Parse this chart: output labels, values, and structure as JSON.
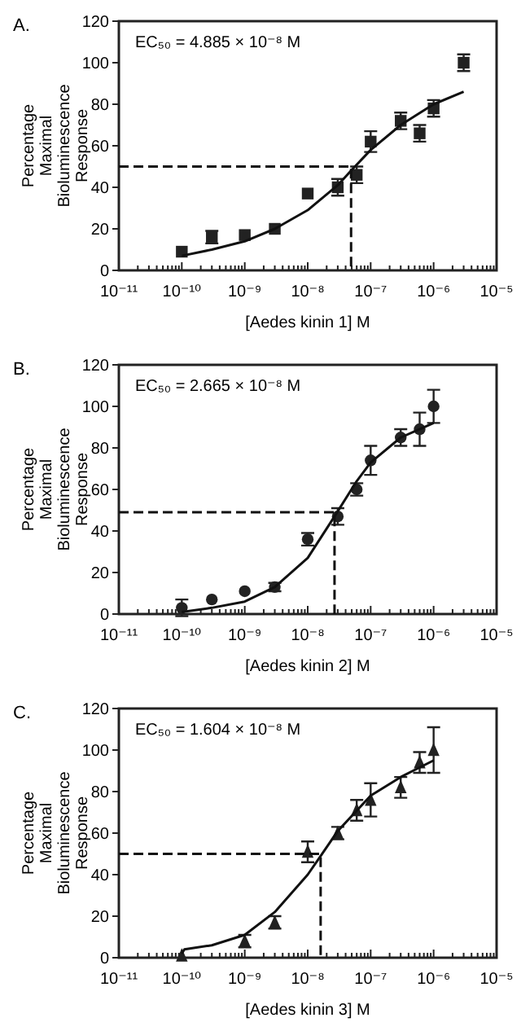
{
  "chart_data": [
    {
      "type": "scatter",
      "title": "A.",
      "xlabel": "[Aedes kinin 1] M",
      "ylabel": "Percentage Maximal Bioluminescence Response",
      "annotations": [
        "EC₅₀ = 4.885 × 10⁻⁸ M"
      ],
      "log": "x",
      "xlim": [
        1e-11,
        1e-05
      ],
      "ylim": [
        0,
        120
      ],
      "yticks": [
        0,
        20,
        40,
        60,
        80,
        100,
        120
      ],
      "xticks": [
        {
          "value": 1e-11,
          "label": "10⁻¹¹"
        },
        {
          "value": 1e-10,
          "label": "10⁻¹⁰"
        },
        {
          "value": 1e-09,
          "label": "10⁻⁹"
        },
        {
          "value": 1e-08,
          "label": "10⁻⁸"
        },
        {
          "value": 1e-07,
          "label": "10⁻⁷"
        },
        {
          "value": 1e-06,
          "label": "10⁻⁶"
        },
        {
          "value": 1e-05,
          "label": "10⁻⁵"
        }
      ],
      "series": [
        {
          "marker": "square",
          "color": "#222222",
          "x": [
            1e-10,
            3e-10,
            1e-09,
            3e-09,
            1e-08,
            3e-08,
            6e-08,
            1e-07,
            3e-07,
            6e-07,
            1e-06,
            3e-06
          ],
          "values": [
            9,
            16,
            17,
            20,
            37,
            40,
            46,
            62,
            72,
            66,
            78,
            100
          ],
          "errors": [
            null,
            3,
            null,
            null,
            null,
            4,
            4,
            5,
            4,
            4,
            4,
            4
          ]
        },
        {
          "type": "line",
          "line_style": "solid",
          "color": "#111111",
          "x": [
            1e-10,
            3e-10,
            1e-09,
            3e-09,
            1e-08,
            3e-08,
            4.885e-08,
            1e-07,
            3e-07,
            1e-06,
            3e-06
          ],
          "values": [
            7,
            10,
            14,
            20,
            29,
            41,
            48,
            58,
            70,
            80,
            86
          ]
        },
        {
          "type": "line",
          "line_style": "dashed",
          "color": "#111111",
          "x": [
            1e-11,
            4.885e-08,
            4.885e-08
          ],
          "values": [
            50,
            50,
            0
          ]
        }
      ]
    },
    {
      "type": "scatter",
      "title": "B.",
      "xlabel": "[Aedes kinin 2] M",
      "ylabel": "Percentage Maximal Bioluminescence Response",
      "annotations": [
        "EC₅₀ = 2.665 × 10⁻⁸ M"
      ],
      "log": "x",
      "xlim": [
        1e-11,
        1e-05
      ],
      "ylim": [
        0,
        120
      ],
      "yticks": [
        0,
        20,
        40,
        60,
        80,
        100,
        120
      ],
      "xticks": [
        {
          "value": 1e-11,
          "label": "10⁻¹¹"
        },
        {
          "value": 1e-10,
          "label": "10⁻¹⁰"
        },
        {
          "value": 1e-09,
          "label": "10⁻⁹"
        },
        {
          "value": 1e-08,
          "label": "10⁻⁸"
        },
        {
          "value": 1e-07,
          "label": "10⁻⁷"
        },
        {
          "value": 1e-06,
          "label": "10⁻⁶"
        },
        {
          "value": 1e-05,
          "label": "10⁻⁵"
        }
      ],
      "series": [
        {
          "marker": "circle",
          "color": "#222222",
          "x": [
            1e-10,
            3e-10,
            1e-09,
            3e-09,
            1e-08,
            3e-08,
            6e-08,
            1e-07,
            3e-07,
            6e-07,
            1e-06
          ],
          "values": [
            3,
            7,
            11,
            13,
            36,
            47,
            60,
            74,
            85,
            89,
            100
          ],
          "errors": [
            4,
            null,
            null,
            2,
            3,
            4,
            3,
            7,
            4,
            8,
            8
          ]
        },
        {
          "type": "line",
          "line_style": "solid",
          "color": "#111111",
          "x": [
            1e-10,
            3e-10,
            1e-09,
            3e-09,
            1e-08,
            2.665e-08,
            6e-08,
            1e-07,
            3e-07,
            1e-06
          ],
          "values": [
            1,
            3,
            6,
            13,
            27,
            47,
            64,
            73,
            85,
            92
          ]
        },
        {
          "type": "line",
          "line_style": "dashed",
          "color": "#111111",
          "x": [
            1e-11,
            2.665e-08,
            2.665e-08
          ],
          "values": [
            49,
            49,
            0
          ]
        }
      ]
    },
    {
      "type": "scatter",
      "title": "C.",
      "xlabel": "[Aedes kinin 3] M",
      "ylabel": "Percentage Maximal Bioluminescence Response",
      "annotations": [
        "EC₅₀ = 1.604 × 10⁻⁸ M"
      ],
      "log": "x",
      "xlim": [
        1e-11,
        1e-05
      ],
      "ylim": [
        0,
        120
      ],
      "yticks": [
        0,
        20,
        40,
        60,
        80,
        100,
        120
      ],
      "xticks": [
        {
          "value": 1e-11,
          "label": "10⁻¹¹"
        },
        {
          "value": 1e-10,
          "label": "10⁻¹⁰"
        },
        {
          "value": 1e-09,
          "label": "10⁻⁹"
        },
        {
          "value": 1e-08,
          "label": "10⁻⁸"
        },
        {
          "value": 1e-07,
          "label": "10⁻⁷"
        },
        {
          "value": 1e-06,
          "label": "10⁻⁶"
        },
        {
          "value": 1e-05,
          "label": "10⁻⁵"
        }
      ],
      "series": [
        {
          "marker": "triangle",
          "color": "#222222",
          "x": [
            1e-10,
            1e-09,
            3e-09,
            1e-08,
            3e-08,
            6e-08,
            1e-07,
            3e-07,
            6e-07,
            1e-06
          ],
          "values": [
            1,
            8,
            17,
            51,
            60,
            71,
            76,
            82,
            94,
            100
          ],
          "errors": [
            null,
            3,
            3,
            5,
            3,
            5,
            8,
            5,
            5,
            11
          ]
        },
        {
          "type": "line",
          "line_style": "solid",
          "color": "#111111",
          "x": [
            1e-10,
            1.1e-10,
            3e-10,
            1e-09,
            3e-09,
            1e-08,
            1.604e-08,
            3e-08,
            1e-07,
            3e-07,
            1e-06
          ],
          "values": [
            2,
            4,
            6,
            11,
            22,
            40,
            49,
            61,
            78,
            87,
            95
          ]
        },
        {
          "type": "line",
          "line_style": "dashed",
          "color": "#111111",
          "x": [
            1e-11,
            1.604e-08,
            1.604e-08
          ],
          "values": [
            50,
            50,
            0
          ]
        }
      ]
    }
  ]
}
